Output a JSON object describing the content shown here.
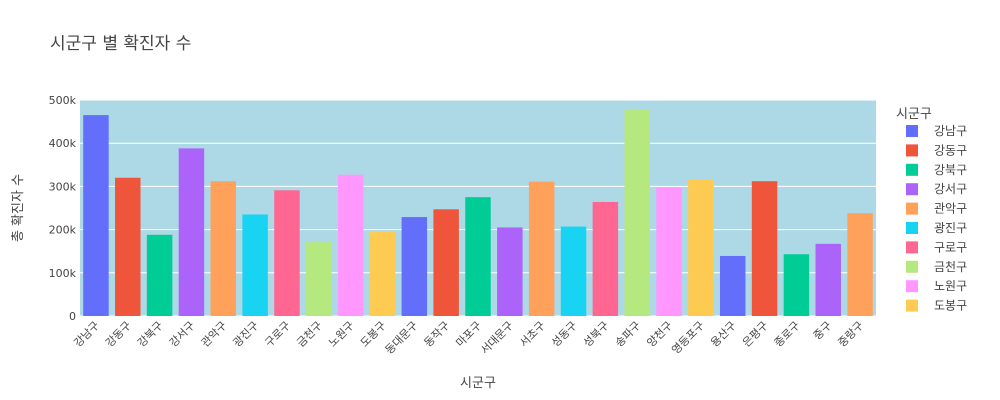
{
  "chart_data": {
    "type": "bar",
    "title": "시군구 별 확진자 수",
    "xlabel": "시군구",
    "ylabel": "총 확진자 수",
    "ylim": [
      0,
      500000
    ],
    "y_ticks": [
      0,
      100000,
      200000,
      300000,
      400000,
      500000
    ],
    "y_tick_labels": [
      "0",
      "100k",
      "200k",
      "300k",
      "400k",
      "500k"
    ],
    "plot_background": "#add8e6",
    "grid": true,
    "legend": {
      "title": "시군구",
      "placement": "right"
    },
    "categories": [
      "강남구",
      "강동구",
      "강북구",
      "강서구",
      "관악구",
      "광진구",
      "구로구",
      "금천구",
      "노원구",
      "도봉구",
      "동대문구",
      "동작구",
      "마포구",
      "서대문구",
      "서초구",
      "성동구",
      "성북구",
      "송파구",
      "양천구",
      "영등포구",
      "용산구",
      "은평구",
      "종로구",
      "중구",
      "중랑구"
    ],
    "values": [
      465000,
      320000,
      188000,
      388000,
      312000,
      235000,
      291000,
      171000,
      327000,
      195000,
      229000,
      247000,
      275000,
      205000,
      311000,
      207000,
      264000,
      477000,
      297000,
      315000,
      139000,
      312000,
      143000,
      167000,
      238000
    ],
    "colors": [
      "#636efa",
      "#ef553b",
      "#00cc96",
      "#ab63fa",
      "#ffa15a",
      "#19d3f3",
      "#ff6692",
      "#b6e880",
      "#ff97ff",
      "#fecb52",
      "#636efa",
      "#ef553b",
      "#00cc96",
      "#ab63fa",
      "#ffa15a",
      "#19d3f3",
      "#ff6692",
      "#b6e880",
      "#ff97ff",
      "#fecb52",
      "#636efa",
      "#ef553b",
      "#00cc96",
      "#ab63fa",
      "#ffa15a"
    ],
    "legend_entries": [
      {
        "name": "강남구",
        "color": "#636efa"
      },
      {
        "name": "강동구",
        "color": "#ef553b"
      },
      {
        "name": "강북구",
        "color": "#00cc96"
      },
      {
        "name": "강서구",
        "color": "#ab63fa"
      },
      {
        "name": "관악구",
        "color": "#ffa15a"
      },
      {
        "name": "광진구",
        "color": "#19d3f3"
      },
      {
        "name": "구로구",
        "color": "#ff6692"
      },
      {
        "name": "금천구",
        "color": "#b6e880"
      },
      {
        "name": "노원구",
        "color": "#ff97ff"
      },
      {
        "name": "도봉구",
        "color": "#fecb52"
      }
    ]
  }
}
